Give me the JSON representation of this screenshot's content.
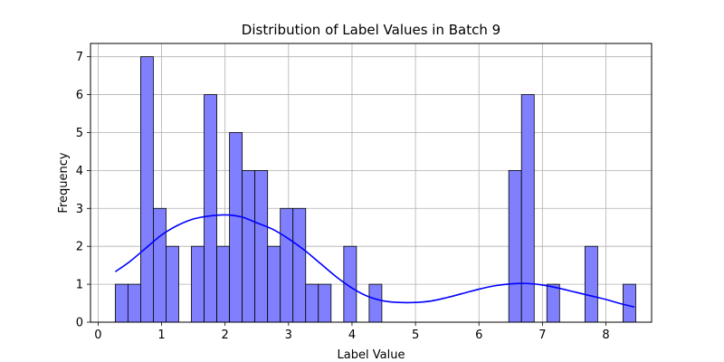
{
  "chart_data": {
    "type": "bar",
    "title": "Distribution of Label Values in Batch 9",
    "xlabel": "Label Value",
    "ylabel": "Frequency",
    "xlim": [
      -0.12,
      8.72
    ],
    "ylim": [
      0,
      7.35
    ],
    "xticks": [
      "0",
      "1",
      "2",
      "3",
      "4",
      "5",
      "6",
      "7",
      "8"
    ],
    "yticks": [
      "0",
      "1",
      "2",
      "3",
      "4",
      "5",
      "6",
      "7"
    ],
    "grid": true,
    "bar_color": "#8080ff",
    "bar_edge_color": "#000000",
    "kde_color": "#0000ff",
    "bins": [
      {
        "x0": 0.27,
        "x1": 0.47,
        "count": 1
      },
      {
        "x0": 0.47,
        "x1": 0.67,
        "count": 1
      },
      {
        "x0": 0.67,
        "x1": 0.87,
        "count": 7
      },
      {
        "x0": 0.87,
        "x1": 1.07,
        "count": 3
      },
      {
        "x0": 1.07,
        "x1": 1.27,
        "count": 2
      },
      {
        "x0": 1.47,
        "x1": 1.67,
        "count": 2
      },
      {
        "x0": 1.67,
        "x1": 1.87,
        "count": 6
      },
      {
        "x0": 1.87,
        "x1": 2.07,
        "count": 2
      },
      {
        "x0": 2.07,
        "x1": 2.27,
        "count": 5
      },
      {
        "x0": 2.27,
        "x1": 2.47,
        "count": 4
      },
      {
        "x0": 2.47,
        "x1": 2.67,
        "count": 4
      },
      {
        "x0": 2.67,
        "x1": 2.87,
        "count": 2
      },
      {
        "x0": 2.87,
        "x1": 3.07,
        "count": 3
      },
      {
        "x0": 3.07,
        "x1": 3.27,
        "count": 3
      },
      {
        "x0": 3.27,
        "x1": 3.47,
        "count": 1
      },
      {
        "x0": 3.47,
        "x1": 3.67,
        "count": 1
      },
      {
        "x0": 3.87,
        "x1": 4.07,
        "count": 2
      },
      {
        "x0": 4.27,
        "x1": 4.47,
        "count": 1
      },
      {
        "x0": 6.47,
        "x1": 6.67,
        "count": 4
      },
      {
        "x0": 6.67,
        "x1": 6.87,
        "count": 6
      },
      {
        "x0": 6.87,
        "x1": 7.07,
        "count": 0
      },
      {
        "x0": 7.07,
        "x1": 7.27,
        "count": 1
      },
      {
        "x0": 7.67,
        "x1": 7.87,
        "count": 2
      },
      {
        "x0": 8.27,
        "x1": 8.47,
        "count": 1
      }
    ],
    "kde": {
      "x": [
        0.27,
        0.5,
        0.75,
        1.0,
        1.25,
        1.5,
        1.75,
        2.0,
        2.25,
        2.5,
        2.75,
        3.0,
        3.25,
        3.5,
        3.75,
        4.0,
        4.25,
        4.5,
        4.75,
        5.0,
        5.25,
        5.5,
        5.75,
        6.0,
        6.25,
        6.5,
        6.75,
        7.0,
        7.25,
        7.5,
        7.75,
        8.0,
        8.25,
        8.45
      ],
      "y": [
        1.33,
        1.6,
        1.95,
        2.3,
        2.55,
        2.72,
        2.8,
        2.83,
        2.78,
        2.62,
        2.45,
        2.2,
        1.9,
        1.55,
        1.2,
        0.9,
        0.68,
        0.56,
        0.52,
        0.52,
        0.56,
        0.65,
        0.76,
        0.87,
        0.96,
        1.01,
        1.02,
        0.98,
        0.9,
        0.8,
        0.7,
        0.6,
        0.48,
        0.4
      ]
    }
  }
}
